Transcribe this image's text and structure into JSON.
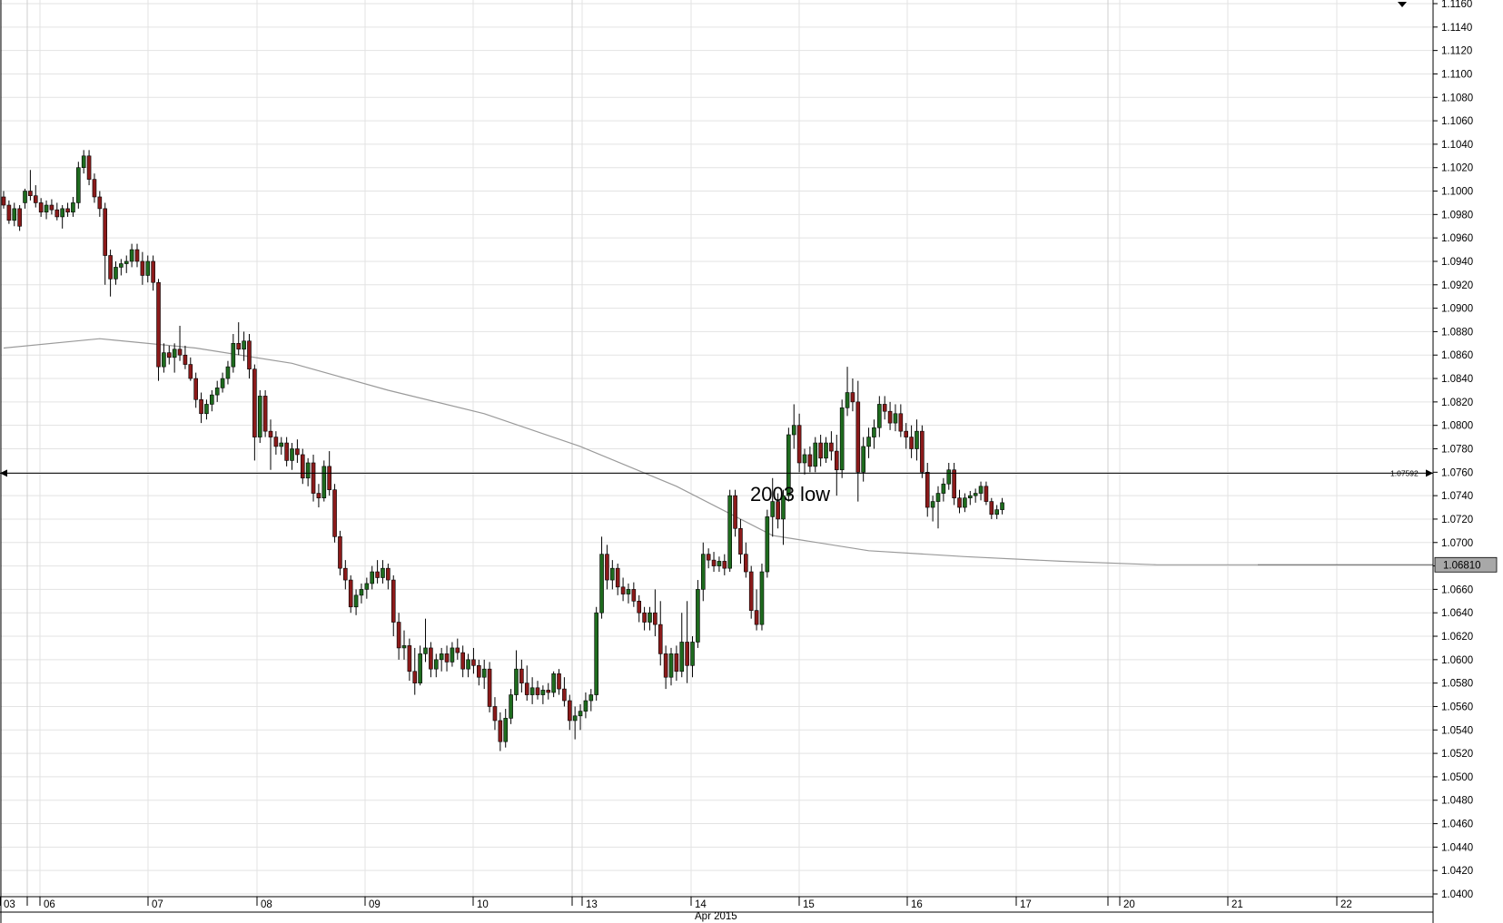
{
  "chart_data": {
    "type": "candlestick",
    "title": "",
    "xlabel": "Apr 2015",
    "ylabel": "",
    "ylim": [
      1.039,
      1.116
    ],
    "y_ticks": [
      "1.0400",
      "1.0420",
      "1.0440",
      "1.0460",
      "1.0480",
      "1.0500",
      "1.0520",
      "1.0540",
      "1.0560",
      "1.0580",
      "1.0600",
      "1.0620",
      "1.0640",
      "1.0660",
      "1.0680",
      "1.0700",
      "1.0720",
      "1.0740",
      "1.0760",
      "1.0780",
      "1.0800",
      "1.0820",
      "1.0840",
      "1.0860",
      "1.0880",
      "1.0900",
      "1.0920",
      "1.0940",
      "1.0960",
      "1.0980",
      "1.1000",
      "1.1020",
      "1.1040",
      "1.1060",
      "1.1080",
      "1.1100",
      "1.1120",
      "1.1140",
      "1.1160"
    ],
    "x_ticks": [
      "03",
      "06",
      "07",
      "08",
      "09",
      "10",
      "13",
      "14",
      "15",
      "16",
      "17",
      "20",
      "21",
      "22"
    ],
    "grid": true,
    "colors": {
      "up": "#1e6b1e",
      "down": "#8b1a1a",
      "wick": "#000000",
      "ma": "#9a9a9a",
      "grid": "#e3e3e3"
    },
    "candles": [
      [
        1.0995,
        1.1,
        1.0985,
        1.0988
      ],
      [
        1.0988,
        1.0992,
        1.0972,
        1.0975
      ],
      [
        1.0975,
        1.099,
        1.097,
        1.0985
      ],
      [
        1.0985,
        1.0988,
        1.0966,
        1.097
      ],
      [
        1.099,
        1.1002,
        1.0985,
        1.1
      ],
      [
        1.1,
        1.1018,
        1.0992,
        1.0996
      ],
      [
        1.0996,
        1.1005,
        1.0986,
        1.099
      ],
      [
        1.099,
        1.0994,
        1.0978,
        1.0982
      ],
      [
        1.0982,
        1.0992,
        1.0976,
        1.0988
      ],
      [
        1.0988,
        1.0993,
        1.098,
        1.0984
      ],
      [
        1.0984,
        1.099,
        1.0975,
        1.0978
      ],
      [
        1.0978,
        1.0988,
        1.0968,
        1.0985
      ],
      [
        1.0985,
        1.099,
        1.0978,
        1.0982
      ],
      [
        1.0982,
        1.0995,
        1.0978,
        1.099
      ],
      [
        1.099,
        1.1025,
        1.0985,
        1.102
      ],
      [
        1.102,
        1.1035,
        1.1015,
        1.103
      ],
      [
        1.103,
        1.1035,
        1.1005,
        1.101
      ],
      [
        1.101,
        1.1015,
        1.099,
        1.0995
      ],
      [
        1.0995,
        1.1,
        1.0978,
        1.0985
      ],
      [
        1.0985,
        1.099,
        1.092,
        1.0945
      ],
      [
        1.0945,
        1.095,
        1.091,
        1.0925
      ],
      [
        1.0925,
        1.094,
        1.092,
        1.0935
      ],
      [
        1.0935,
        1.0942,
        1.0928,
        1.0938
      ],
      [
        1.0938,
        1.0945,
        1.093,
        1.094
      ],
      [
        1.094,
        1.0955,
        1.0935,
        1.095
      ],
      [
        1.095,
        1.0955,
        1.0935,
        1.094
      ],
      [
        1.094,
        1.0948,
        1.092,
        1.0928
      ],
      [
        1.0928,
        1.0945,
        1.0922,
        1.094
      ],
      [
        1.094,
        1.0945,
        1.0915,
        1.0922
      ],
      [
        1.0922,
        1.0925,
        1.0838,
        1.085
      ],
      [
        1.085,
        1.087,
        1.0845,
        1.0862
      ],
      [
        1.0862,
        1.0868,
        1.0852,
        1.0858
      ],
      [
        1.0858,
        1.087,
        1.0845,
        1.0865
      ],
      [
        1.0865,
        1.0885,
        1.0855,
        1.086
      ],
      [
        1.086,
        1.0868,
        1.0848,
        1.0852
      ],
      [
        1.0852,
        1.0858,
        1.0838,
        1.084
      ],
      [
        1.084,
        1.0845,
        1.0815,
        1.0822
      ],
      [
        1.0822,
        1.0828,
        1.0802,
        1.081
      ],
      [
        1.081,
        1.0822,
        1.0805,
        1.0818
      ],
      [
        1.0818,
        1.083,
        1.0812,
        1.0826
      ],
      [
        1.0826,
        1.0838,
        1.082,
        1.0832
      ],
      [
        1.0832,
        1.0845,
        1.0828,
        1.084
      ],
      [
        1.084,
        1.0855,
        1.0835,
        1.085
      ],
      [
        1.085,
        1.0878,
        1.0845,
        1.087
      ],
      [
        1.087,
        1.0888,
        1.086,
        1.0865
      ],
      [
        1.0865,
        1.088,
        1.0855,
        1.0872
      ],
      [
        1.0872,
        1.0878,
        1.084,
        1.0848
      ],
      [
        1.0848,
        1.0852,
        1.077,
        1.079
      ],
      [
        1.079,
        1.083,
        1.0785,
        1.0825
      ],
      [
        1.0825,
        1.083,
        1.079,
        1.0795
      ],
      [
        1.0795,
        1.0805,
        1.0762,
        1.079
      ],
      [
        1.079,
        1.0795,
        1.0775,
        1.0782
      ],
      [
        1.0782,
        1.079,
        1.0775,
        1.0785
      ],
      [
        1.0785,
        1.079,
        1.0765,
        1.077
      ],
      [
        1.077,
        1.0785,
        1.0762,
        1.078
      ],
      [
        1.078,
        1.0788,
        1.0768,
        1.0775
      ],
      [
        1.0775,
        1.078,
        1.075,
        1.0755
      ],
      [
        1.0755,
        1.0772,
        1.0748,
        1.0768
      ],
      [
        1.0768,
        1.0775,
        1.0735,
        1.0742
      ],
      [
        1.0742,
        1.075,
        1.073,
        1.0738
      ],
      [
        1.0738,
        1.077,
        1.0735,
        1.0765
      ],
      [
        1.0765,
        1.0778,
        1.074,
        1.0745
      ],
      [
        1.0745,
        1.075,
        1.07,
        1.0705
      ],
      [
        1.0705,
        1.071,
        1.0672,
        1.0678
      ],
      [
        1.0678,
        1.0685,
        1.066,
        1.0668
      ],
      [
        1.0668,
        1.0672,
        1.064,
        1.0645
      ],
      [
        1.0645,
        1.066,
        1.0638,
        1.0655
      ],
      [
        1.0655,
        1.0665,
        1.0648,
        1.066
      ],
      [
        1.066,
        1.067,
        1.0652,
        1.0665
      ],
      [
        1.0665,
        1.068,
        1.066,
        1.0675
      ],
      [
        1.0675,
        1.0685,
        1.0665,
        1.067
      ],
      [
        1.067,
        1.0685,
        1.0665,
        1.0678
      ],
      [
        1.0678,
        1.0682,
        1.066,
        1.0668
      ],
      [
        1.0668,
        1.0672,
        1.062,
        1.0632
      ],
      [
        1.0632,
        1.064,
        1.06,
        1.061
      ],
      [
        1.061,
        1.0625,
        1.06,
        1.0612
      ],
      [
        1.0612,
        1.0618,
        1.0582,
        1.059
      ],
      [
        1.059,
        1.061,
        1.057,
        1.058
      ],
      [
        1.058,
        1.0612,
        1.0578,
        1.0605
      ],
      [
        1.0605,
        1.0635,
        1.0598,
        1.061
      ],
      [
        1.061,
        1.0615,
        1.0585,
        1.0592
      ],
      [
        1.0592,
        1.0605,
        1.0585,
        1.06
      ],
      [
        1.06,
        1.061,
        1.059,
        1.0605
      ],
      [
        1.0605,
        1.0612,
        1.059,
        1.0598
      ],
      [
        1.0598,
        1.0615,
        1.0594,
        1.061
      ],
      [
        1.061,
        1.0618,
        1.06,
        1.0606
      ],
      [
        1.0606,
        1.0612,
        1.0585,
        1.0592
      ],
      [
        1.0592,
        1.0605,
        1.0585,
        1.06
      ],
      [
        1.06,
        1.061,
        1.0588,
        1.0595
      ],
      [
        1.0595,
        1.06,
        1.0578,
        1.0585
      ],
      [
        1.0585,
        1.06,
        1.0575,
        1.0592
      ],
      [
        1.0592,
        1.0598,
        1.0555,
        1.056
      ],
      [
        1.056,
        1.0568,
        1.054,
        1.0548
      ],
      [
        1.0548,
        1.0555,
        1.0522,
        1.053
      ],
      [
        1.053,
        1.0558,
        1.0525,
        1.055
      ],
      [
        1.055,
        1.0575,
        1.0545,
        1.057
      ],
      [
        1.057,
        1.0608,
        1.0565,
        1.0592
      ],
      [
        1.0592,
        1.06,
        1.0572,
        1.058
      ],
      [
        1.058,
        1.0595,
        1.0565,
        1.057
      ],
      [
        1.057,
        1.0585,
        1.0562,
        1.0576
      ],
      [
        1.0576,
        1.0582,
        1.0566,
        1.057
      ],
      [
        1.057,
        1.0578,
        1.0562,
        1.0574
      ],
      [
        1.0574,
        1.058,
        1.0566,
        1.0572
      ],
      [
        1.0572,
        1.059,
        1.0568,
        1.0588
      ],
      [
        1.0588,
        1.0592,
        1.057,
        1.0575
      ],
      [
        1.0575,
        1.0585,
        1.056,
        1.0565
      ],
      [
        1.0565,
        1.057,
        1.054,
        1.0548
      ],
      [
        1.0548,
        1.056,
        1.0532,
        1.0552
      ],
      [
        1.0552,
        1.0562,
        1.054,
        1.0556
      ],
      [
        1.0556,
        1.0572,
        1.055,
        1.0565
      ],
      [
        1.0565,
        1.0575,
        1.0556,
        1.057
      ],
      [
        1.057,
        1.0645,
        1.0565,
        1.064
      ],
      [
        1.064,
        1.0705,
        1.0635,
        1.069
      ],
      [
        1.069,
        1.0698,
        1.066,
        1.0668
      ],
      [
        1.0668,
        1.0685,
        1.066,
        1.0678
      ],
      [
        1.0678,
        1.0682,
        1.0655,
        1.0662
      ],
      [
        1.0662,
        1.067,
        1.065,
        1.0656
      ],
      [
        1.0656,
        1.0665,
        1.0648,
        1.066
      ],
      [
        1.066,
        1.0666,
        1.0645,
        1.065
      ],
      [
        1.065,
        1.0655,
        1.0632,
        1.064
      ],
      [
        1.064,
        1.0645,
        1.0625,
        1.0632
      ],
      [
        1.0632,
        1.0645,
        1.0625,
        1.064
      ],
      [
        1.064,
        1.066,
        1.062,
        1.063
      ],
      [
        1.063,
        1.065,
        1.0595,
        1.0605
      ],
      [
        1.0605,
        1.0612,
        1.0575,
        1.0585
      ],
      [
        1.0585,
        1.061,
        1.0578,
        1.0605
      ],
      [
        1.0605,
        1.0612,
        1.0582,
        1.059
      ],
      [
        1.059,
        1.064,
        1.0585,
        1.0615
      ],
      [
        1.0615,
        1.065,
        1.058,
        1.0595
      ],
      [
        1.0595,
        1.062,
        1.0585,
        1.0615
      ],
      [
        1.0615,
        1.0668,
        1.061,
        1.066
      ],
      [
        1.066,
        1.07,
        1.065,
        1.069
      ],
      [
        1.069,
        1.0695,
        1.0678,
        1.0685
      ],
      [
        1.0685,
        1.0692,
        1.0675,
        1.068
      ],
      [
        1.068,
        1.0688,
        1.0675,
        1.0684
      ],
      [
        1.0684,
        1.069,
        1.0672,
        1.0678
      ],
      [
        1.0678,
        1.0745,
        1.0675,
        1.074
      ],
      [
        1.074,
        1.0745,
        1.0705,
        1.0712
      ],
      [
        1.0712,
        1.072,
        1.0682,
        1.069
      ],
      [
        1.069,
        1.07,
        1.067,
        1.0675
      ],
      [
        1.0675,
        1.068,
        1.0635,
        1.0642
      ],
      [
        1.0642,
        1.066,
        1.0625,
        1.063
      ],
      [
        1.063,
        1.0682,
        1.0625,
        1.0675
      ],
      [
        1.0675,
        1.0728,
        1.067,
        1.0722
      ],
      [
        1.0722,
        1.0755,
        1.0705,
        1.0735
      ],
      [
        1.0735,
        1.0742,
        1.0712,
        1.072
      ],
      [
        1.072,
        1.0745,
        1.0698,
        1.074
      ],
      [
        1.074,
        1.0798,
        1.0735,
        1.0792
      ],
      [
        1.0792,
        1.0818,
        1.078,
        1.08
      ],
      [
        1.08,
        1.081,
        1.076,
        1.0768
      ],
      [
        1.0768,
        1.078,
        1.0758,
        1.0775
      ],
      [
        1.0775,
        1.0782,
        1.076,
        1.0765
      ],
      [
        1.0765,
        1.079,
        1.076,
        1.0785
      ],
      [
        1.0785,
        1.0792,
        1.0765,
        1.0772
      ],
      [
        1.0772,
        1.079,
        1.0768,
        1.0785
      ],
      [
        1.0785,
        1.0795,
        1.077,
        1.0778
      ],
      [
        1.0778,
        1.0792,
        1.074,
        1.0762
      ],
      [
        1.0762,
        1.0822,
        1.0755,
        1.0815
      ],
      [
        1.0815,
        1.085,
        1.0808,
        1.0828
      ],
      [
        1.0828,
        1.084,
        1.0812,
        1.082
      ],
      [
        1.082,
        1.0838,
        1.0735,
        1.076
      ],
      [
        1.076,
        1.079,
        1.0752,
        1.0782
      ],
      [
        1.0782,
        1.0798,
        1.0772,
        1.079
      ],
      [
        1.079,
        1.0805,
        1.078,
        1.0798
      ],
      [
        1.0798,
        1.0825,
        1.079,
        1.0818
      ],
      [
        1.0818,
        1.0825,
        1.0805,
        1.0812
      ],
      [
        1.0812,
        1.082,
        1.0796,
        1.0802
      ],
      [
        1.0802,
        1.0818,
        1.0795,
        1.081
      ],
      [
        1.081,
        1.0818,
        1.079,
        1.0795
      ],
      [
        1.0795,
        1.0802,
        1.078,
        1.079
      ],
      [
        1.079,
        1.08,
        1.0772,
        1.078
      ],
      [
        1.078,
        1.0805,
        1.077,
        1.0795
      ],
      [
        1.0795,
        1.08,
        1.0755,
        1.076
      ],
      [
        1.076,
        1.0768,
        1.0722,
        1.073
      ],
      [
        1.073,
        1.074,
        1.0718,
        1.0735
      ],
      [
        1.0735,
        1.0748,
        1.0712,
        1.0742
      ],
      [
        1.0742,
        1.0755,
        1.0735,
        1.075
      ],
      [
        1.075,
        1.0768,
        1.0745,
        1.0762
      ],
      [
        1.0762,
        1.0768,
        1.0732,
        1.0738
      ],
      [
        1.0738,
        1.0745,
        1.0725,
        1.073
      ],
      [
        1.073,
        1.0742,
        1.0726,
        1.0738
      ],
      [
        1.0738,
        1.0744,
        1.0732,
        1.074
      ],
      [
        1.074,
        1.0746,
        1.0734,
        1.0742
      ],
      [
        1.0742,
        1.0752,
        1.0736,
        1.0748
      ],
      [
        1.0748,
        1.0752,
        1.0732,
        1.0735
      ],
      [
        1.0735,
        1.0738,
        1.072,
        1.0724
      ],
      [
        1.0724,
        1.0732,
        1.072,
        1.0728
      ],
      [
        1.0728,
        1.0738,
        1.0724,
        1.0734
      ]
    ],
    "ma": {
      "name": "",
      "x_index": [
        0,
        18,
        36,
        54,
        72,
        90,
        108,
        126,
        144,
        162,
        180,
        198,
        216,
        236
      ],
      "values": [
        1.0866,
        1.0874,
        1.0866,
        1.0853,
        1.083,
        1.081,
        1.0782,
        1.0748,
        1.0706,
        1.0693,
        1.0688,
        1.0684,
        1.0681,
        1.0681
      ]
    },
    "hline": {
      "value": 1.07592,
      "label": "1.07592"
    },
    "last_value": "1.06810",
    "annotations": [
      {
        "text": "2003 low"
      }
    ]
  }
}
